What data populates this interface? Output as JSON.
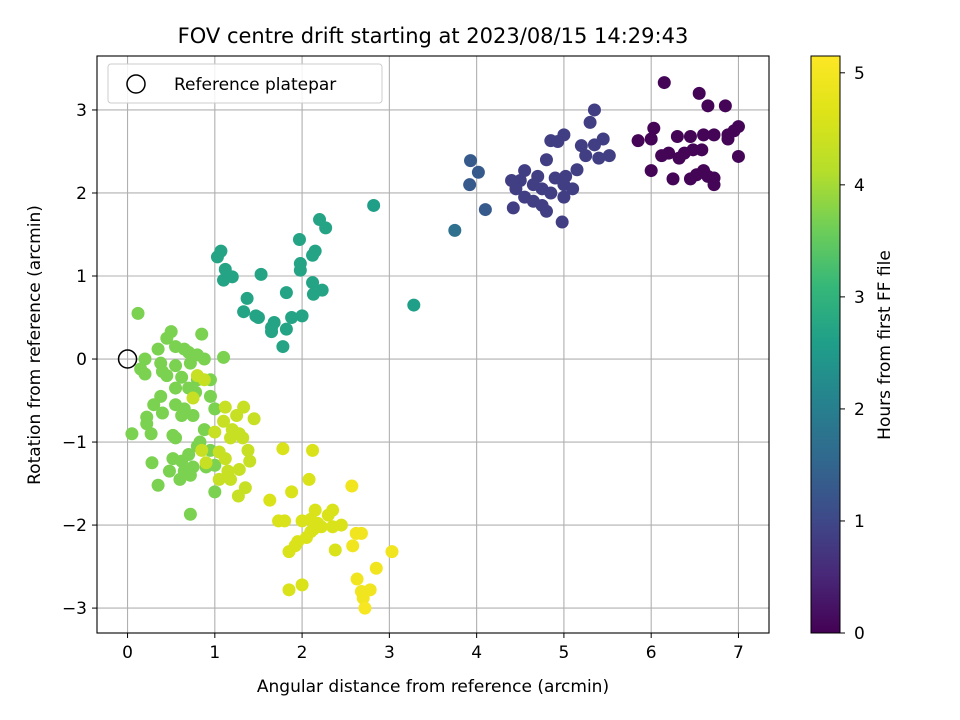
{
  "chart_data": {
    "type": "scatter",
    "title": "FOV centre drift starting at 2023/08/15 14:29:43",
    "xlabel": "Angular distance from reference (arcmin)",
    "ylabel": "Rotation from reference (arcmin)",
    "xlim": [
      -0.35,
      7.35
    ],
    "ylim": [
      -3.3,
      3.65
    ],
    "xticks": [
      0,
      1,
      2,
      3,
      4,
      5,
      6,
      7
    ],
    "yticks": [
      -3,
      -2,
      -1,
      0,
      1,
      2,
      3
    ],
    "grid": true,
    "colormap": "viridis",
    "colorbar": {
      "label": "Hours from first FF file",
      "range": [
        0,
        5.15
      ],
      "ticks": [
        0,
        1,
        2,
        3,
        4,
        5
      ]
    },
    "legend": {
      "position": "top-left",
      "entries": [
        {
          "label": "Reference platepar",
          "marker": "open-circle"
        }
      ]
    },
    "reference_point": {
      "x": 0,
      "y": 0
    },
    "points": [
      [
        6.15,
        3.33,
        0.05
      ],
      [
        6.55,
        3.2,
        0.05
      ],
      [
        6.65,
        3.05,
        0.05
      ],
      [
        6.85,
        3.05,
        0.05
      ],
      [
        7.0,
        2.8,
        0.05
      ],
      [
        6.95,
        2.75,
        0.05
      ],
      [
        6.88,
        2.7,
        0.05
      ],
      [
        6.72,
        2.7,
        0.05
      ],
      [
        6.6,
        2.7,
        0.05
      ],
      [
        6.45,
        2.68,
        0.05
      ],
      [
        6.3,
        2.68,
        0.05
      ],
      [
        6.03,
        2.78,
        0.05
      ],
      [
        6.88,
        2.65,
        0.05
      ],
      [
        6.0,
        2.65,
        0.05
      ],
      [
        6.58,
        2.52,
        0.05
      ],
      [
        6.48,
        2.52,
        0.05
      ],
      [
        6.38,
        2.48,
        0.05
      ],
      [
        6.2,
        2.48,
        0.05
      ],
      [
        6.12,
        2.45,
        0.05
      ],
      [
        6.32,
        2.42,
        0.05
      ],
      [
        7.0,
        2.44,
        0.05
      ],
      [
        6.0,
        2.27,
        0.05
      ],
      [
        6.6,
        2.27,
        0.05
      ],
      [
        6.52,
        2.22,
        0.05
      ],
      [
        6.65,
        2.2,
        0.05
      ],
      [
        6.45,
        2.17,
        0.05
      ],
      [
        6.25,
        2.17,
        0.05
      ],
      [
        6.72,
        2.18,
        0.05
      ],
      [
        6.72,
        2.1,
        0.05
      ],
      [
        5.85,
        2.63,
        0.05
      ],
      [
        5.35,
        3.0,
        0.85
      ],
      [
        5.3,
        2.85,
        0.85
      ],
      [
        5.45,
        2.65,
        0.85
      ],
      [
        5.2,
        2.57,
        0.85
      ],
      [
        5.35,
        2.58,
        0.85
      ],
      [
        5.52,
        2.45,
        0.85
      ],
      [
        5.4,
        2.42,
        0.85
      ],
      [
        5.25,
        2.45,
        0.85
      ],
      [
        4.85,
        2.63,
        0.85
      ],
      [
        4.93,
        2.62,
        0.85
      ],
      [
        5.0,
        2.7,
        0.85
      ],
      [
        4.8,
        2.4,
        0.85
      ],
      [
        5.15,
        2.28,
        0.85
      ],
      [
        4.55,
        2.27,
        0.85
      ],
      [
        4.7,
        2.2,
        0.85
      ],
      [
        4.9,
        2.18,
        0.85
      ],
      [
        5.02,
        2.2,
        0.85
      ],
      [
        4.5,
        2.15,
        0.85
      ],
      [
        4.65,
        2.1,
        0.85
      ],
      [
        4.75,
        2.05,
        0.85
      ],
      [
        4.85,
        2.0,
        0.85
      ],
      [
        5.0,
        2.1,
        0.85
      ],
      [
        5.1,
        2.05,
        0.85
      ],
      [
        4.45,
        2.05,
        0.85
      ],
      [
        4.55,
        1.95,
        0.85
      ],
      [
        4.65,
        1.9,
        0.85
      ],
      [
        5.0,
        1.95,
        0.85
      ],
      [
        4.75,
        1.85,
        0.85
      ],
      [
        4.8,
        1.78,
        0.85
      ],
      [
        4.98,
        1.65,
        0.85
      ],
      [
        4.42,
        1.82,
        0.85
      ],
      [
        4.4,
        2.15,
        0.85
      ],
      [
        3.93,
        2.39,
        1.3
      ],
      [
        4.02,
        2.25,
        1.3
      ],
      [
        3.92,
        2.1,
        1.3
      ],
      [
        4.1,
        1.8,
        1.3
      ],
      [
        3.75,
        1.55,
        1.7
      ],
      [
        2.82,
        1.85,
        2.6
      ],
      [
        3.28,
        0.65,
        2.6
      ],
      [
        2.2,
        1.68,
        2.7
      ],
      [
        2.27,
        1.58,
        2.7
      ],
      [
        1.97,
        1.44,
        2.7
      ],
      [
        2.15,
        1.3,
        2.7
      ],
      [
        2.12,
        1.25,
        2.7
      ],
      [
        1.07,
        1.3,
        2.7
      ],
      [
        1.03,
        1.23,
        2.7
      ],
      [
        1.98,
        1.15,
        2.7
      ],
      [
        1.98,
        1.07,
        2.7
      ],
      [
        1.12,
        1.08,
        2.7
      ],
      [
        1.53,
        1.02,
        2.7
      ],
      [
        1.2,
        0.99,
        2.7
      ],
      [
        1.1,
        0.95,
        2.7
      ],
      [
        2.12,
        0.92,
        2.7
      ],
      [
        2.23,
        0.83,
        2.7
      ],
      [
        2.13,
        0.78,
        2.7
      ],
      [
        1.82,
        0.8,
        2.7
      ],
      [
        1.37,
        0.73,
        2.7
      ],
      [
        1.33,
        0.57,
        2.7
      ],
      [
        1.47,
        0.52,
        2.7
      ],
      [
        1.5,
        0.5,
        2.7
      ],
      [
        1.88,
        0.5,
        2.7
      ],
      [
        2.0,
        0.52,
        2.7
      ],
      [
        1.68,
        0.44,
        2.7
      ],
      [
        1.65,
        0.38,
        2.7
      ],
      [
        1.82,
        0.36,
        2.7
      ],
      [
        1.65,
        0.33,
        2.7
      ],
      [
        1.78,
        0.15,
        2.7
      ],
      [
        0.12,
        0.55,
        3.7
      ],
      [
        0.5,
        0.33,
        3.7
      ],
      [
        0.85,
        0.3,
        3.7
      ],
      [
        0.45,
        0.25,
        3.7
      ],
      [
        0.55,
        0.15,
        3.7
      ],
      [
        0.35,
        0.12,
        3.7
      ],
      [
        0.65,
        0.12,
        3.7
      ],
      [
        0.7,
        0.08,
        3.7
      ],
      [
        0.8,
        0.05,
        3.7
      ],
      [
        0.88,
        0.0,
        3.7
      ],
      [
        1.1,
        0.02,
        3.7
      ],
      [
        0.2,
        0.0,
        3.7
      ],
      [
        0.38,
        -0.05,
        3.7
      ],
      [
        0.55,
        -0.08,
        3.7
      ],
      [
        0.72,
        -0.05,
        3.7
      ],
      [
        0.15,
        -0.12,
        3.7
      ],
      [
        0.4,
        -0.15,
        3.7
      ],
      [
        0.2,
        -0.18,
        3.7
      ],
      [
        0.45,
        -0.2,
        3.7
      ],
      [
        0.62,
        -0.22,
        3.7
      ],
      [
        0.8,
        -0.25,
        3.7
      ],
      [
        0.95,
        -0.25,
        3.7
      ],
      [
        0.55,
        -0.35,
        3.7
      ],
      [
        0.7,
        -0.35,
        3.7
      ],
      [
        0.78,
        -0.4,
        3.7
      ],
      [
        0.95,
        -0.45,
        3.7
      ],
      [
        0.38,
        -0.45,
        3.7
      ],
      [
        0.3,
        -0.55,
        3.7
      ],
      [
        0.4,
        -0.65,
        3.7
      ],
      [
        0.55,
        -0.55,
        3.7
      ],
      [
        0.65,
        -0.6,
        3.7
      ],
      [
        0.75,
        -0.68,
        3.7
      ],
      [
        0.62,
        -0.68,
        3.7
      ],
      [
        1.0,
        -0.6,
        3.7
      ],
      [
        0.22,
        -0.7,
        3.7
      ],
      [
        0.22,
        -0.78,
        3.7
      ],
      [
        0.88,
        -0.85,
        3.7
      ],
      [
        0.05,
        -0.9,
        3.7
      ],
      [
        0.27,
        -0.9,
        3.7
      ],
      [
        0.52,
        -0.92,
        3.7
      ],
      [
        0.55,
        -0.95,
        3.7
      ],
      [
        0.83,
        -1.0,
        3.7
      ],
      [
        0.8,
        -1.05,
        3.7
      ],
      [
        0.95,
        -1.1,
        3.7
      ],
      [
        0.7,
        -1.15,
        3.7
      ],
      [
        0.52,
        -1.2,
        3.7
      ],
      [
        0.62,
        -1.23,
        3.7
      ],
      [
        0.28,
        -1.25,
        3.7
      ],
      [
        0.75,
        -1.3,
        3.7
      ],
      [
        0.9,
        -1.3,
        3.7
      ],
      [
        1.0,
        -1.28,
        3.7
      ],
      [
        0.48,
        -1.35,
        3.7
      ],
      [
        0.65,
        -1.35,
        3.7
      ],
      [
        0.72,
        -1.4,
        3.7
      ],
      [
        0.6,
        -1.45,
        3.7
      ],
      [
        0.35,
        -1.52,
        3.7
      ],
      [
        1.0,
        -1.6,
        3.7
      ],
      [
        0.72,
        -1.87,
        3.7
      ],
      [
        0.8,
        -0.2,
        4.35
      ],
      [
        0.88,
        -0.25,
        4.35
      ],
      [
        0.75,
        -0.47,
        4.35
      ],
      [
        1.12,
        -0.58,
        4.35
      ],
      [
        1.33,
        -0.58,
        4.35
      ],
      [
        1.45,
        -0.72,
        4.35
      ],
      [
        1.25,
        -0.68,
        4.35
      ],
      [
        1.1,
        -0.75,
        4.35
      ],
      [
        1.2,
        -0.85,
        4.35
      ],
      [
        1.0,
        -0.88,
        4.35
      ],
      [
        1.18,
        -0.95,
        4.35
      ],
      [
        1.28,
        -0.9,
        4.35
      ],
      [
        1.32,
        -0.95,
        4.35
      ],
      [
        0.85,
        -1.1,
        4.35
      ],
      [
        1.05,
        -1.12,
        4.35
      ],
      [
        1.12,
        -1.2,
        4.35
      ],
      [
        1.38,
        -1.1,
        4.35
      ],
      [
        1.4,
        -1.23,
        4.35
      ],
      [
        0.9,
        -1.25,
        4.35
      ],
      [
        1.15,
        -1.35,
        4.35
      ],
      [
        1.28,
        -1.33,
        4.35
      ],
      [
        1.05,
        -1.45,
        4.35
      ],
      [
        1.18,
        -1.45,
        4.35
      ],
      [
        1.35,
        -1.55,
        4.35
      ],
      [
        1.27,
        -1.65,
        4.35
      ],
      [
        1.78,
        -1.08,
        4.6
      ],
      [
        2.12,
        -1.1,
        4.6
      ],
      [
        2.08,
        -1.45,
        4.6
      ],
      [
        1.88,
        -1.6,
        4.6
      ],
      [
        1.63,
        -1.7,
        4.6
      ],
      [
        2.15,
        -1.82,
        4.6
      ],
      [
        2.35,
        -1.82,
        4.6
      ],
      [
        2.3,
        -1.88,
        4.6
      ],
      [
        2.45,
        -2.0,
        4.6
      ],
      [
        2.1,
        -1.93,
        4.6
      ],
      [
        2.0,
        -1.95,
        4.6
      ],
      [
        2.18,
        -1.98,
        4.6
      ],
      [
        1.73,
        -1.95,
        4.6
      ],
      [
        1.8,
        -1.95,
        4.6
      ],
      [
        2.13,
        -2.05,
        4.6
      ],
      [
        2.22,
        -2.02,
        4.6
      ],
      [
        2.35,
        -2.02,
        4.6
      ],
      [
        2.1,
        -2.08,
        4.6
      ],
      [
        2.05,
        -2.15,
        4.6
      ],
      [
        1.95,
        -2.2,
        4.6
      ],
      [
        1.92,
        -2.25,
        4.6
      ],
      [
        1.85,
        -2.32,
        4.6
      ],
      [
        2.38,
        -2.3,
        4.6
      ],
      [
        1.85,
        -2.78,
        4.6
      ],
      [
        2.0,
        -2.72,
        4.6
      ],
      [
        2.57,
        -1.53,
        4.95
      ],
      [
        2.68,
        -2.1,
        4.95
      ],
      [
        2.62,
        -2.1,
        4.95
      ],
      [
        2.58,
        -2.25,
        4.95
      ],
      [
        3.03,
        -2.32,
        4.95
      ],
      [
        2.85,
        -2.52,
        4.95
      ],
      [
        2.63,
        -2.65,
        4.95
      ],
      [
        2.78,
        -2.78,
        4.95
      ],
      [
        2.68,
        -2.8,
        4.95
      ],
      [
        2.7,
        -2.88,
        4.95
      ],
      [
        2.72,
        -3.0,
        5.05
      ]
    ]
  }
}
